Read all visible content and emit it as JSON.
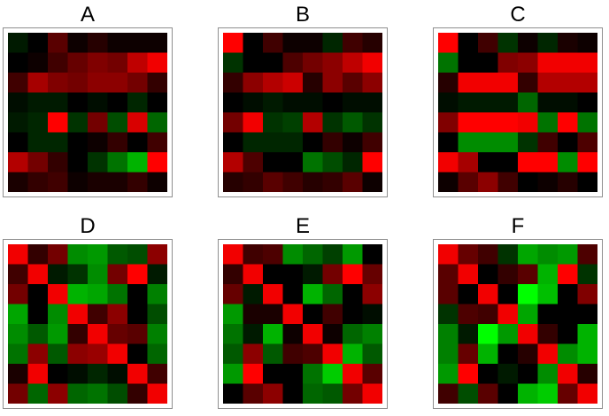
{
  "chart_data": [
    {
      "type": "heatmap",
      "title": "A",
      "colors": [
        "#00ff00",
        "#000000",
        "#ff0000"
      ],
      "values": [
        [
          -0.1,
          0.0,
          0.35,
          0.05,
          0.15,
          0.05,
          0.05,
          0.05
        ],
        [
          0.0,
          0.05,
          0.25,
          0.4,
          0.5,
          0.45,
          0.75,
          0.95
        ],
        [
          0.25,
          0.65,
          0.5,
          0.45,
          0.55,
          0.55,
          0.45,
          0.2
        ],
        [
          -0.05,
          -0.1,
          -0.1,
          0.0,
          -0.05,
          0.0,
          -0.15,
          0.0
        ],
        [
          -0.1,
          -0.15,
          1.0,
          -0.2,
          0.45,
          -0.3,
          0.85,
          -0.4
        ],
        [
          0.0,
          -0.15,
          -0.15,
          0.0,
          0.05,
          0.2,
          0.0,
          0.25
        ],
        [
          0.7,
          0.45,
          0.2,
          0.0,
          -0.2,
          -0.45,
          -0.7,
          1.0
        ],
        [
          0.1,
          0.2,
          0.25,
          0.05,
          0.1,
          0.1,
          0.2,
          0.05
        ]
      ]
    },
    {
      "type": "heatmap",
      "title": "B",
      "colors": [
        "#00ff00",
        "#000000",
        "#ff0000"
      ],
      "values": [
        [
          1.0,
          0.0,
          0.25,
          0.05,
          0.05,
          -0.15,
          0.25,
          0.15
        ],
        [
          -0.2,
          0.0,
          0.0,
          0.3,
          0.45,
          0.55,
          0.75,
          0.95
        ],
        [
          0.2,
          0.55,
          0.7,
          0.8,
          0.15,
          0.55,
          0.35,
          0.55
        ],
        [
          0.0,
          -0.05,
          -0.1,
          -0.05,
          -0.05,
          0.0,
          -0.05,
          -0.05
        ],
        [
          0.45,
          0.95,
          -0.2,
          -0.25,
          0.7,
          -0.2,
          -0.35,
          -0.2
        ],
        [
          0.0,
          -0.15,
          -0.15,
          -0.15,
          0.0,
          0.2,
          0.05,
          0.25
        ],
        [
          0.7,
          0.3,
          0.0,
          0.0,
          -0.45,
          -0.3,
          -0.15,
          1.0
        ],
        [
          0.15,
          0.2,
          0.35,
          0.25,
          0.15,
          0.2,
          0.35,
          0.05
        ]
      ]
    },
    {
      "type": "heatmap",
      "title": "C",
      "colors": [
        "#00ff00",
        "#000000",
        "#ff0000"
      ],
      "values": [
        [
          1.0,
          0.0,
          0.25,
          -0.2,
          0.05,
          -0.15,
          0.1,
          0.05
        ],
        [
          -0.45,
          0.0,
          0.0,
          0.5,
          0.55,
          0.95,
          0.95,
          0.95
        ],
        [
          0.15,
          0.95,
          0.95,
          0.95,
          0.2,
          0.7,
          0.7,
          0.7
        ],
        [
          -0.05,
          -0.1,
          -0.1,
          -0.1,
          -0.4,
          -0.05,
          -0.05,
          0.0
        ],
        [
          0.5,
          1.0,
          1.0,
          1.0,
          0.95,
          -0.45,
          1.0,
          -0.45
        ],
        [
          0.0,
          -0.55,
          -0.55,
          -0.55,
          -0.2,
          0.25,
          0.0,
          0.3
        ],
        [
          0.95,
          0.65,
          0.0,
          0.0,
          1.0,
          1.0,
          -0.55,
          1.0
        ],
        [
          0.05,
          0.35,
          0.55,
          0.25,
          0.0,
          0.05,
          0.15,
          0.0
        ]
      ]
    },
    {
      "type": "heatmap",
      "title": "D",
      "colors": [
        "#00ff00",
        "#000000",
        "#ff0000"
      ],
      "values": [
        [
          0.95,
          0.2,
          0.45,
          -0.55,
          -0.6,
          -0.35,
          -0.3,
          0.55
        ],
        [
          0.25,
          0.95,
          -0.1,
          -0.2,
          -0.55,
          0.45,
          1.0,
          -0.1
        ],
        [
          0.45,
          0.0,
          0.95,
          -0.7,
          -0.65,
          -0.45,
          0.0,
          -0.5
        ],
        [
          -0.65,
          0.0,
          -0.55,
          0.95,
          0.25,
          0.55,
          0.0,
          -0.3
        ],
        [
          -0.55,
          -0.35,
          -0.6,
          0.2,
          0.95,
          0.4,
          0.35,
          -0.5
        ],
        [
          -0.45,
          0.55,
          -0.35,
          0.55,
          0.6,
          0.95,
          0.0,
          -0.4
        ],
        [
          0.1,
          0.95,
          0.0,
          -0.05,
          -0.15,
          -0.05,
          0.95,
          0.25
        ],
        [
          0.45,
          -0.4,
          0.55,
          -0.4,
          -0.45,
          -0.3,
          0.2,
          0.95
        ]
      ]
    },
    {
      "type": "heatmap",
      "title": "E",
      "colors": [
        "#00ff00",
        "#000000",
        "#ff0000"
      ],
      "values": [
        [
          0.95,
          0.25,
          0.3,
          -0.55,
          -0.4,
          -0.25,
          -0.6,
          0.0
        ],
        [
          0.2,
          0.95,
          0.0,
          0.0,
          -0.1,
          0.45,
          1.0,
          0.4
        ],
        [
          0.4,
          -0.1,
          0.95,
          0.0,
          -0.7,
          -0.4,
          0.0,
          0.55
        ],
        [
          -0.6,
          0.1,
          0.1,
          0.95,
          0.0,
          0.25,
          0.0,
          -0.05
        ],
        [
          -0.45,
          -0.1,
          -0.7,
          0.05,
          0.95,
          0.05,
          -0.4,
          -0.5
        ],
        [
          -0.35,
          0.55,
          -0.35,
          0.25,
          0.3,
          0.95,
          -0.7,
          -0.35
        ],
        [
          -0.6,
          1.0,
          0.0,
          0.0,
          -0.45,
          -0.8,
          0.95,
          0.35
        ],
        [
          0.0,
          0.35,
          0.55,
          0.0,
          -0.4,
          -0.35,
          0.45,
          0.95
        ]
      ]
    },
    {
      "type": "heatmap",
      "title": "F",
      "colors": [
        "#00ff00",
        "#000000",
        "#ff0000"
      ],
      "values": [
        [
          0.95,
          0.4,
          0.25,
          -0.2,
          -0.65,
          -0.55,
          -0.6,
          0.3
        ],
        [
          0.35,
          0.95,
          0.0,
          0.2,
          0.35,
          -0.7,
          1.0,
          -0.2
        ],
        [
          0.35,
          0.0,
          0.95,
          0.0,
          -1.0,
          -0.75,
          0.0,
          0.5
        ],
        [
          -0.2,
          0.3,
          0.25,
          0.95,
          -0.65,
          0.0,
          0.0,
          0.0
        ],
        [
          -0.5,
          -0.1,
          -1.0,
          -0.6,
          0.95,
          0.2,
          0.0,
          -0.7
        ],
        [
          -0.5,
          0.4,
          -0.7,
          0.0,
          0.15,
          0.95,
          -0.55,
          -0.7
        ],
        [
          -0.6,
          1.0,
          0.0,
          -0.1,
          0.0,
          -0.55,
          0.95,
          0.15
        ],
        [
          0.25,
          -0.3,
          0.35,
          0.0,
          -0.7,
          -0.8,
          0.4,
          0.95
        ]
      ]
    }
  ]
}
